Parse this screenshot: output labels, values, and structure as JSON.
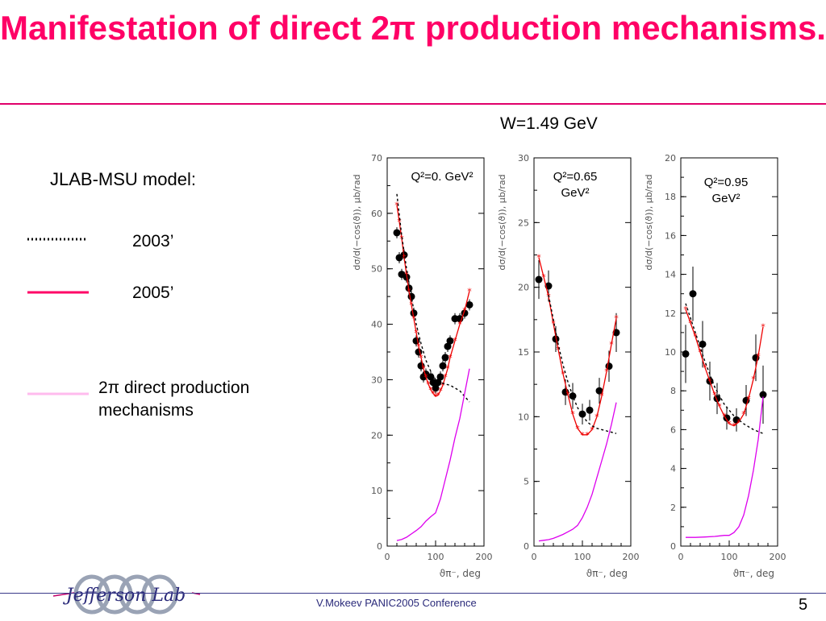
{
  "title": "Manifestation of direct 2π production mechanisms.",
  "w_label": "W=1.49 GeV",
  "legend": {
    "heading": "JLAB-MSU model:",
    "items": [
      {
        "label": "2003’",
        "style": "dotted",
        "color": "#000000"
      },
      {
        "label": "2005’",
        "style": "solid",
        "color": "#ff0066"
      },
      {
        "label": "2π direct production mechanisms",
        "line1": "2π direct production",
        "line2": "mechanisms",
        "style": "solid",
        "color": "#ffbbee"
      }
    ]
  },
  "footer": {
    "text": "V.Mokeev  PANIC2005 Conference",
    "page": "5",
    "logo_text": "Jefferson Lab"
  },
  "chart_data": [
    {
      "type": "scatter",
      "title": "",
      "annotation_line1": "Q²=0. GeV²",
      "annotation_line2": "",
      "xlabel": "ϑπ⁻, deg",
      "ylabel": "dσ/d(−cos(ϑ)), μb/rad",
      "xlim": [
        0,
        200
      ],
      "ylim": [
        0,
        70
      ],
      "xticks": [
        "0",
        "100",
        "200"
      ],
      "yticks": [
        "0",
        "10",
        "20",
        "30",
        "40",
        "50",
        "60",
        "70"
      ],
      "grid": false,
      "series": [
        {
          "kind": "data",
          "color": "#000000",
          "x": [
            20,
            25,
            30,
            35,
            40,
            45,
            50,
            55,
            60,
            65,
            70,
            75,
            80,
            90,
            95,
            100,
            105,
            110,
            115,
            120,
            125,
            130,
            140,
            150,
            160,
            170
          ],
          "y": [
            56.5,
            52,
            49,
            52.5,
            48.5,
            46.5,
            45,
            42,
            37,
            35,
            32.5,
            30.5,
            31,
            30.5,
            29.5,
            28.5,
            29.5,
            30.5,
            32.5,
            34,
            36,
            37,
            41,
            41,
            42,
            43.5
          ],
          "err": [
            1,
            1,
            1,
            1,
            1,
            1,
            1,
            1,
            1,
            1,
            1,
            1,
            1,
            1,
            1,
            1,
            1,
            1,
            1,
            1,
            1,
            1,
            1,
            1,
            1,
            1
          ]
        },
        {
          "kind": "curve-2005",
          "color": "#ee0000",
          "markers": true,
          "x": [
            20,
            25,
            30,
            35,
            40,
            45,
            50,
            55,
            60,
            65,
            70,
            75,
            80,
            85,
            90,
            95,
            100,
            105,
            110,
            115,
            120,
            125,
            130,
            140,
            150,
            160,
            170
          ],
          "y": [
            61.5,
            58.5,
            55.5,
            52,
            49,
            46,
            43.5,
            41,
            38.5,
            36,
            34,
            32,
            30.5,
            29.2,
            28.2,
            27.5,
            27,
            27.2,
            28,
            29,
            30.5,
            32,
            34,
            37,
            40,
            42.5,
            46
          ]
        },
        {
          "kind": "curve-2003",
          "color": "#000000",
          "x": [
            20,
            30,
            40,
            50,
            60,
            70,
            80,
            90,
            100,
            110,
            120,
            130,
            140,
            150,
            160,
            170
          ],
          "y": [
            63.5,
            56,
            50,
            45,
            40,
            36.5,
            33.5,
            31.5,
            30,
            29.5,
            29.2,
            29,
            28.5,
            28,
            27,
            26
          ]
        },
        {
          "kind": "direct-2pi",
          "color": "#dd00ee",
          "x": [
            20,
            30,
            40,
            50,
            60,
            70,
            80,
            90,
            100,
            110,
            120,
            130,
            140,
            150,
            160,
            170
          ],
          "y": [
            1,
            1.2,
            1.6,
            2.2,
            2.8,
            3.5,
            4.5,
            5.3,
            6,
            8.5,
            12,
            15.5,
            19.5,
            23,
            27.5,
            32
          ]
        }
      ]
    },
    {
      "type": "scatter",
      "title": "",
      "annotation_line1": "Q²=0.65",
      "annotation_line2": "GeV²",
      "xlabel": "ϑπ⁻, deg",
      "ylabel": "dσ/d(−cos(ϑ)), μb/rad",
      "xlim": [
        0,
        200
      ],
      "ylim": [
        0,
        30
      ],
      "xticks": [
        "0",
        "100",
        "200"
      ],
      "yticks": [
        "0",
        "5",
        "10",
        "15",
        "20",
        "25",
        "30"
      ],
      "grid": false,
      "series": [
        {
          "kind": "data",
          "color": "#000000",
          "x": [
            10,
            30,
            45,
            65,
            80,
            100,
            115,
            135,
            155,
            170
          ],
          "y": [
            20.6,
            20.1,
            16,
            11.9,
            11.6,
            10.2,
            10.5,
            12,
            13.9,
            16.5
          ],
          "err": [
            1.5,
            1.2,
            1.0,
            1.0,
            1.0,
            0.8,
            0.8,
            1.0,
            1.2,
            1.5
          ]
        },
        {
          "kind": "curve-2005",
          "color": "#ee0000",
          "markers": true,
          "x": [
            10,
            20,
            30,
            40,
            50,
            60,
            70,
            80,
            90,
            100,
            110,
            120,
            130,
            140,
            150,
            160,
            170
          ],
          "y": [
            22.3,
            20.8,
            19.3,
            17.2,
            15.2,
            13.3,
            11.7,
            10.2,
            9.1,
            8.6,
            8.6,
            9.0,
            10.0,
            11.6,
            13.5,
            15.6,
            17.6
          ]
        },
        {
          "kind": "curve-2003",
          "color": "#000000",
          "x": [
            30,
            40,
            50,
            60,
            70,
            80,
            90,
            100,
            110,
            120,
            130,
            140,
            150,
            160,
            170
          ],
          "y": [
            19.4,
            17.5,
            15.6,
            14,
            12.7,
            11.6,
            10.7,
            10.1,
            9.6,
            9.3,
            9.1,
            9.0,
            8.9,
            8.8,
            8.7
          ]
        },
        {
          "kind": "direct-2pi",
          "color": "#dd00ee",
          "x": [
            10,
            20,
            30,
            40,
            50,
            60,
            70,
            80,
            90,
            100,
            110,
            120,
            130,
            140,
            150,
            160,
            170
          ],
          "y": [
            0.4,
            0.45,
            0.5,
            0.6,
            0.75,
            0.9,
            1.1,
            1.3,
            1.6,
            2.2,
            3.0,
            4.0,
            5.3,
            6.6,
            7.9,
            9.4,
            11.1
          ]
        }
      ]
    },
    {
      "type": "scatter",
      "title": "",
      "annotation_line1": "Q²=0.95",
      "annotation_line2": "GeV²",
      "xlabel": "ϑπ⁻, deg",
      "ylabel": "dσ/d(−cos(ϑ)), μb/rad",
      "xlim": [
        0,
        200
      ],
      "ylim": [
        0,
        20
      ],
      "xticks": [
        "0",
        "100",
        "200"
      ],
      "yticks": [
        "0",
        "2",
        "4",
        "6",
        "8",
        "10",
        "12",
        "14",
        "16",
        "18",
        "20"
      ],
      "grid": false,
      "series": [
        {
          "kind": "data",
          "color": "#000000",
          "x": [
            10,
            25,
            45,
            60,
            75,
            95,
            115,
            135,
            155,
            170
          ],
          "y": [
            9.9,
            13.0,
            10.4,
            8.5,
            7.6,
            6.6,
            6.5,
            7.5,
            9.7,
            7.8
          ],
          "err": [
            1.5,
            1.4,
            1.2,
            1.0,
            0.8,
            0.6,
            0.6,
            0.8,
            1.2,
            1.5
          ]
        },
        {
          "kind": "curve-2005",
          "color": "#ee0000",
          "markers": true,
          "x": [
            10,
            20,
            30,
            40,
            50,
            60,
            70,
            80,
            90,
            100,
            110,
            120,
            130,
            140,
            150,
            160,
            170
          ],
          "y": [
            12.2,
            11.5,
            10.8,
            10,
            9.2,
            8.5,
            7.8,
            7.2,
            6.7,
            6.3,
            6.2,
            6.4,
            6.8,
            7.6,
            8.6,
            9.8,
            11.3
          ]
        },
        {
          "kind": "curve-2003",
          "color": "#000000",
          "x": [
            10,
            30,
            50,
            70,
            90,
            110,
            130,
            150,
            170
          ],
          "y": [
            12.5,
            11,
            9.5,
            8.2,
            7.3,
            6.7,
            6.3,
            6.0,
            5.8
          ]
        },
        {
          "kind": "direct-2pi",
          "color": "#dd00ee",
          "x": [
            10,
            30,
            50,
            70,
            90,
            100,
            110,
            120,
            130,
            140,
            150,
            160,
            170
          ],
          "y": [
            0.45,
            0.45,
            0.47,
            0.5,
            0.55,
            0.55,
            0.7,
            1.0,
            1.6,
            2.6,
            3.9,
            5.5,
            7.7
          ]
        }
      ]
    }
  ]
}
